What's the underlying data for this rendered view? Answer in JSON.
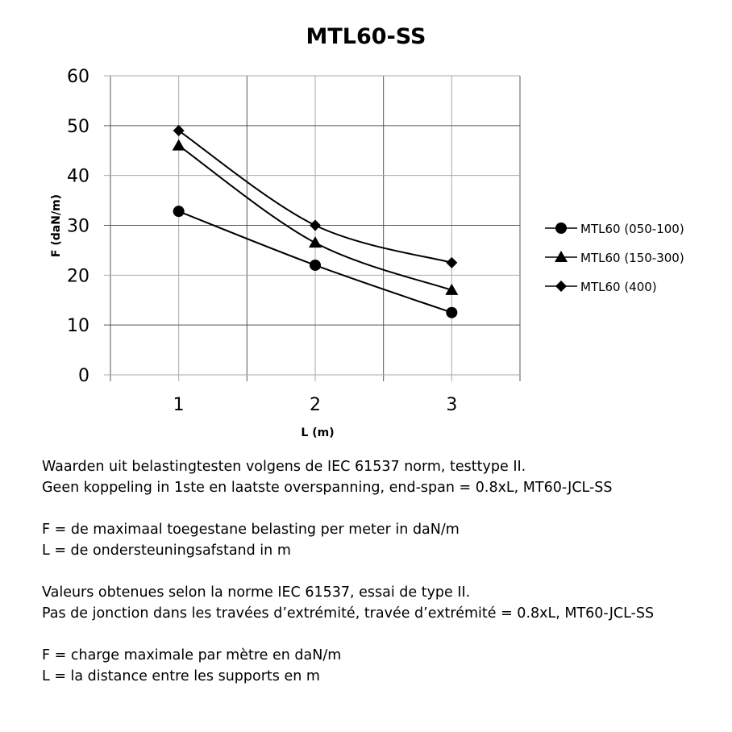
{
  "chart_data": {
    "type": "line",
    "title": "MTL60-SS",
    "xlabel": "L (m)",
    "ylabel": "F (daN/m)",
    "xlim": [
      0.5,
      3.5
    ],
    "ylim": [
      0,
      60
    ],
    "x_ticks": [
      "1",
      "2",
      "3"
    ],
    "y_ticks": [
      "0",
      "10",
      "20",
      "30",
      "40",
      "50",
      "60"
    ],
    "grid": true,
    "legend_position": "right",
    "x": [
      1,
      2,
      3
    ],
    "series": [
      {
        "name": "MTL60 (050-100)",
        "marker": "circle",
        "values": [
          32.8,
          22,
          12.5
        ]
      },
      {
        "name": "MTL60 (150-300)",
        "marker": "triangle",
        "values": [
          46,
          26.5,
          17
        ]
      },
      {
        "name": "MTL60 (400)",
        "marker": "diamond",
        "values": [
          49,
          30,
          22.5
        ]
      }
    ],
    "line_color": "#000000",
    "grid_color": "#808080"
  },
  "notes": [
    "Waarden uit belastingtesten volgens de IEC 61537 norm, testtype II.",
    "Geen koppeling in 1ste en laatste overspanning, end-span = 0.8xL, MT60-JCL-SS",
    "",
    "F = de maximaal toegestane belasting per meter in daN/m",
    "L = de ondersteuningsafstand in m",
    "",
    "Valeurs obtenues selon la norme IEC 61537, essai de type II.",
    "Pas de jonction dans les travées d’extrémité, travée d’extrémité = 0.8xL, MT60-JCL-SS",
    "",
    "F = charge maximale par mètre en daN/m",
    "L = la distance entre les supports en m"
  ]
}
